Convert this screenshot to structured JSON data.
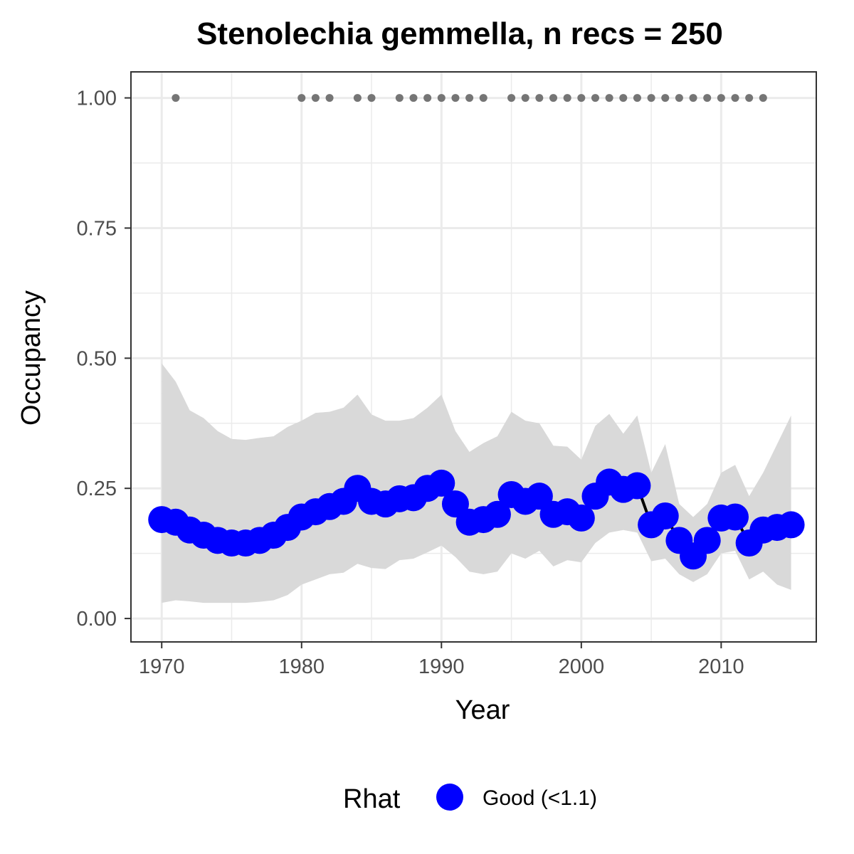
{
  "chart_data": {
    "type": "line",
    "title": "Stenolechia gemmella, n recs = 250",
    "xlabel": "Year",
    "ylabel": "Occupancy",
    "xlim": [
      1967.8,
      2016.8
    ],
    "ylim": [
      -0.045,
      1.05
    ],
    "x_ticks": [
      1970,
      1980,
      1990,
      2000,
      2010
    ],
    "x_tick_labels": [
      "1970",
      "1980",
      "1990",
      "2000",
      "2010"
    ],
    "y_ticks": [
      0,
      0.25,
      0.5,
      0.75,
      1.0
    ],
    "y_tick_labels": [
      "0.00",
      "0.25",
      "0.50",
      "0.75",
      "1.00"
    ],
    "grid": true,
    "series": [
      {
        "kind": "mean",
        "x": [
          1970,
          1971,
          1972,
          1973,
          1974,
          1975,
          1976,
          1977,
          1978,
          1979,
          1980,
          1981,
          1982,
          1983,
          1984,
          1985,
          1986,
          1987,
          1988,
          1989,
          1990,
          1991,
          1992,
          1993,
          1994,
          1995,
          1996,
          1997,
          1998,
          1999,
          2000,
          2001,
          2002,
          2003,
          2004,
          2005,
          2006,
          2007,
          2008,
          2009,
          2010,
          2011,
          2012,
          2013,
          2014,
          2015
        ],
        "values": [
          0.19,
          0.185,
          0.17,
          0.16,
          0.15,
          0.145,
          0.145,
          0.15,
          0.16,
          0.175,
          0.195,
          0.205,
          0.215,
          0.225,
          0.25,
          0.225,
          0.22,
          0.23,
          0.232,
          0.25,
          0.26,
          0.22,
          0.185,
          0.19,
          0.2,
          0.238,
          0.225,
          0.235,
          0.2,
          0.205,
          0.193,
          0.235,
          0.262,
          0.248,
          0.255,
          0.18,
          0.197,
          0.15,
          0.12,
          0.15,
          0.193,
          0.195,
          0.145,
          0.17,
          0.175,
          0.18
        ]
      },
      {
        "kind": "upper_ci",
        "values": [
          0.49,
          0.455,
          0.4,
          0.385,
          0.36,
          0.345,
          0.343,
          0.347,
          0.35,
          0.368,
          0.38,
          0.395,
          0.397,
          0.405,
          0.43,
          0.392,
          0.38,
          0.38,
          0.385,
          0.405,
          0.43,
          0.36,
          0.32,
          0.337,
          0.35,
          0.397,
          0.38,
          0.375,
          0.332,
          0.33,
          0.305,
          0.37,
          0.393,
          0.355,
          0.39,
          0.28,
          0.335,
          0.22,
          0.195,
          0.22,
          0.28,
          0.295,
          0.235,
          0.28,
          0.335,
          0.39
        ]
      },
      {
        "kind": "lower_ci",
        "values": [
          0.03,
          0.035,
          0.033,
          0.03,
          0.03,
          0.03,
          0.03,
          0.032,
          0.035,
          0.045,
          0.065,
          0.075,
          0.085,
          0.088,
          0.105,
          0.097,
          0.095,
          0.112,
          0.115,
          0.127,
          0.14,
          0.118,
          0.09,
          0.085,
          0.09,
          0.125,
          0.115,
          0.13,
          0.1,
          0.112,
          0.108,
          0.145,
          0.165,
          0.17,
          0.165,
          0.11,
          0.115,
          0.085,
          0.07,
          0.085,
          0.125,
          0.13,
          0.075,
          0.09,
          0.065,
          0.055
        ]
      }
    ],
    "records": {
      "y": 1.0,
      "x": [
        1971,
        1980,
        1981,
        1982,
        1984,
        1985,
        1987,
        1988,
        1989,
        1990,
        1991,
        1992,
        1993,
        1995,
        1996,
        1997,
        1998,
        1999,
        2000,
        2001,
        2002,
        2003,
        2004,
        2005,
        2006,
        2007,
        2008,
        2009,
        2010,
        2011,
        2012,
        2013
      ]
    },
    "legend": {
      "position": "bottom",
      "title": "Rhat",
      "items": [
        {
          "label": "Good (<1.1)",
          "color": "#0000ff"
        }
      ]
    },
    "colors": {
      "points": "#0000ff",
      "line": "#000000",
      "ribbon": "#d9d9d9",
      "records": "#757575",
      "grid": "#ebebeb",
      "panel_border": "#333333"
    }
  }
}
